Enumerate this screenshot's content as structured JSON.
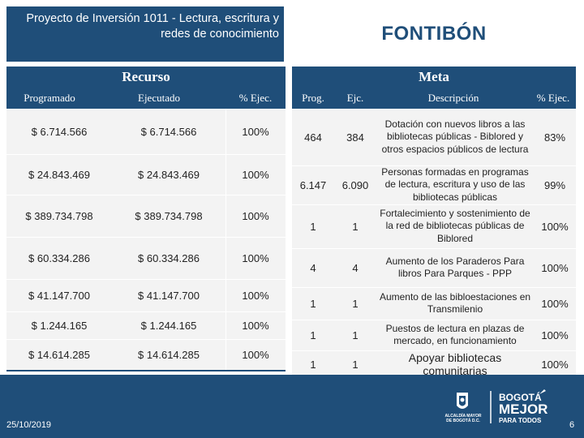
{
  "header": {
    "project_title": "Proyecto de Inversión 1011 - Lectura, escritura y redes de conocimiento",
    "district": "FONTIBÓN"
  },
  "sections": {
    "resource": "Recurso",
    "goal": "Meta"
  },
  "columns": {
    "programmed": "Programado",
    "executed": "Ejecutado",
    "pct_exec": "% Ejec.",
    "prog": "Prog.",
    "ejc": "Ejc.",
    "description": "Descripción",
    "pct_exec_goal": "% Ejec."
  },
  "resource_rows": [
    {
      "programmed": "$ 6.714.566",
      "executed": "$ 6.714.566",
      "pct": "100%"
    },
    {
      "programmed": "$ 24.843.469",
      "executed": "$ 24.843.469",
      "pct": "100%"
    },
    {
      "programmed": "$ 389.734.798",
      "executed": "$ 389.734.798",
      "pct": "100%"
    },
    {
      "programmed": "$ 60.334.286",
      "executed": "$ 60.334.286",
      "pct": "100%"
    },
    {
      "programmed": "$ 41.147.700",
      "executed": "$ 41.147.700",
      "pct": "100%"
    },
    {
      "programmed": "$ 1.244.165",
      "executed": "$ 1.244.165",
      "pct": "100%"
    },
    {
      "programmed": "$ 14.614.285",
      "executed": "$ 14.614.285",
      "pct": "100%"
    }
  ],
  "goal_rows": [
    {
      "prog": "464",
      "ejc": "384",
      "description": "Dotación con nuevos libros a las bibliotecas públicas - Biblored y otros espacios públicos de lectura",
      "pct": "83%"
    },
    {
      "prog": "6.147",
      "ejc": "6.090",
      "description": "Personas formadas en programas de lectura, escritura y uso de las bibliotecas públicas",
      "pct": "99%"
    },
    {
      "prog": "1",
      "ejc": "1",
      "description": "Fortalecimiento y sostenimiento de la red de bibliotecas públicas de Biblored",
      "pct": "100%"
    },
    {
      "prog": "4",
      "ejc": "4",
      "description": "Aumento de los Paraderos Para libros Para Parques - PPP",
      "pct": "100%"
    },
    {
      "prog": "1",
      "ejc": "1",
      "description": "Aumento de las bibloestaciones en Transmilenio",
      "pct": "100%"
    },
    {
      "prog": "1",
      "ejc": "1",
      "description": "Puestos de lectura en plazas de mercado, en funcionamiento",
      "pct": "100%"
    },
    {
      "prog": "1",
      "ejc": "1",
      "description": "Apoyar bibliotecas comunitarias",
      "pct": "100%"
    }
  ],
  "footer": {
    "date": "25/10/2019",
    "page": "6",
    "logo_left": "ALCALDÍA MAYOR DE BOGOTÁ D.C.",
    "logo_right_1": "BOGOTÁ",
    "logo_right_2": "MEJOR",
    "logo_right_3": "PARA TODOS"
  }
}
